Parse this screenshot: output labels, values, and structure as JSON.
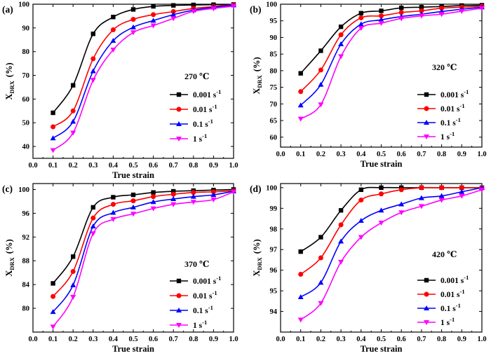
{
  "chart_data": [
    {
      "type": "line",
      "panel_label": "(a)",
      "temperature": "270 ℃",
      "xlabel": "True strain",
      "ylabel_main": "X",
      "ylabel_sub": "DRX",
      "ylabel_unit": "(%)",
      "xlim": [
        0.0,
        1.0
      ],
      "ylim": [
        35,
        100
      ],
      "xticks": [
        "0.0",
        "0.1",
        "0.2",
        "0.3",
        "0.4",
        "0.5",
        "0.6",
        "0.7",
        "0.8",
        "0.9",
        "1.0"
      ],
      "yticks": [
        "40",
        "50",
        "60",
        "70",
        "80",
        "90",
        "100"
      ],
      "x": [
        0.1,
        0.2,
        0.3,
        0.4,
        0.5,
        0.6,
        0.7,
        0.8,
        0.9,
        1.0
      ],
      "series": [
        {
          "name_base": "0.001 s",
          "name_sup": "-1",
          "color": "#000000",
          "marker": "square",
          "values": [
            54.2,
            65.8,
            87.5,
            94.6,
            97.8,
            99.1,
            99.5,
            99.7,
            99.8,
            99.9
          ]
        },
        {
          "name_base": "0.01 s",
          "name_sup": "-1",
          "color": "#ff0000",
          "marker": "circle",
          "values": [
            48.3,
            55.0,
            77.0,
            89.2,
            93.6,
            95.6,
            96.9,
            98.2,
            99.0,
            99.8
          ]
        },
        {
          "name_base": "0.1 s",
          "name_sup": "-1",
          "color": "#0000ff",
          "marker": "triangle-up",
          "values": [
            43.5,
            50.5,
            71.8,
            84.6,
            90.3,
            93.1,
            95.6,
            97.5,
            98.7,
            99.6
          ]
        },
        {
          "name_base": "1 s",
          "name_sup": "-1",
          "color": "#ff00ff",
          "marker": "triangle-down",
          "values": [
            38.4,
            45.8,
            68.0,
            80.8,
            88.1,
            91.0,
            94.0,
            97.0,
            98.2,
            99.2
          ]
        }
      ]
    },
    {
      "type": "line",
      "panel_label": "(b)",
      "temperature": "320 ℃",
      "xlabel": "True strain",
      "ylabel_main": "X",
      "ylabel_sub": "DRX",
      "ylabel_unit": "(%)",
      "xlim": [
        0.0,
        1.0
      ],
      "ylim": [
        57,
        100
      ],
      "xticks": [
        "0.0",
        "0.1",
        "0.2",
        "0.3",
        "0.4",
        "0.5",
        "0.6",
        "0.7",
        "0.8",
        "0.9",
        "1.0"
      ],
      "yticks": [
        "60",
        "65",
        "70",
        "75",
        "80",
        "85",
        "90",
        "95",
        "100"
      ],
      "x": [
        0.1,
        0.2,
        0.3,
        0.4,
        0.5,
        0.6,
        0.7,
        0.8,
        0.9,
        1.0
      ],
      "series": [
        {
          "name_base": "0.001 s",
          "name_sup": "-1",
          "color": "#000000",
          "marker": "square",
          "values": [
            79.2,
            86.0,
            93.2,
            97.3,
            98.0,
            98.9,
            99.1,
            99.3,
            99.6,
            99.7
          ]
        },
        {
          "name_base": "0.01 s",
          "name_sup": "-1",
          "color": "#ff0000",
          "marker": "circle",
          "values": [
            73.7,
            80.2,
            90.8,
            95.9,
            96.5,
            97.5,
            98.0,
            98.8,
            99.1,
            99.4
          ]
        },
        {
          "name_base": "0.1 s",
          "name_sup": "-1",
          "color": "#0000ff",
          "marker": "triangle-up",
          "values": [
            69.6,
            75.8,
            88.0,
            94.0,
            95.3,
            96.3,
            97.0,
            97.8,
            98.5,
            99.1
          ]
        },
        {
          "name_base": "1 s",
          "name_sup": "-1",
          "color": "#ff00ff",
          "marker": "triangle-down",
          "values": [
            65.5,
            69.8,
            84.3,
            92.8,
            94.3,
            95.7,
            96.5,
            97.0,
            97.9,
            98.8
          ]
        }
      ]
    },
    {
      "type": "line",
      "panel_label": "(c)",
      "temperature": "370 ℃",
      "xlabel": "True strain",
      "ylabel_main": "X",
      "ylabel_sub": "DRX",
      "ylabel_unit": "(%)",
      "xlim": [
        0.0,
        1.0
      ],
      "ylim": [
        76,
        101
      ],
      "xticks": [
        "0.0",
        "0.1",
        "0.2",
        "0.3",
        "0.4",
        "0.5",
        "0.6",
        "0.7",
        "0.8",
        "0.9",
        "1.0"
      ],
      "yticks": [
        "80",
        "84",
        "88",
        "92",
        "96",
        "100"
      ],
      "x": [
        0.1,
        0.2,
        0.3,
        0.4,
        0.5,
        0.6,
        0.7,
        0.8,
        0.9,
        1.0
      ],
      "series": [
        {
          "name_base": "0.001 s",
          "name_sup": "-1",
          "color": "#000000",
          "marker": "square",
          "values": [
            84.2,
            88.7,
            97.0,
            98.7,
            99.1,
            99.5,
            99.7,
            99.8,
            99.9,
            100.0
          ]
        },
        {
          "name_base": "0.01 s",
          "name_sup": "-1",
          "color": "#ff0000",
          "marker": "circle",
          "values": [
            82.0,
            86.2,
            95.2,
            97.5,
            98.1,
            98.8,
            99.2,
            99.5,
            99.6,
            99.8
          ]
        },
        {
          "name_base": "0.1 s",
          "name_sup": "-1",
          "color": "#0000ff",
          "marker": "triangle-up",
          "values": [
            79.4,
            83.9,
            93.8,
            96.1,
            97.0,
            97.9,
            98.4,
            98.8,
            99.1,
            99.7
          ]
        },
        {
          "name_base": "1 s",
          "name_sup": "-1",
          "color": "#ff00ff",
          "marker": "triangle-down",
          "values": [
            76.9,
            81.9,
            92.6,
            95.0,
            95.9,
            96.8,
            97.5,
            97.9,
            98.3,
            99.6
          ]
        }
      ]
    },
    {
      "type": "line",
      "panel_label": "(d)",
      "temperature": "420 ℃",
      "xlabel": "True strain",
      "ylabel_main": "X",
      "ylabel_sub": "DRX",
      "ylabel_unit": "(%)",
      "xlim": [
        0.0,
        1.0
      ],
      "ylim": [
        93,
        100.2
      ],
      "xticks": [
        "0.0",
        "0.1",
        "0.2",
        "0.3",
        "0.4",
        "0.5",
        "0.6",
        "0.7",
        "0.8",
        "0.9",
        "1.0"
      ],
      "yticks": [
        "94",
        "95",
        "96",
        "97",
        "98",
        "99",
        "100"
      ],
      "x": [
        0.1,
        0.2,
        0.3,
        0.4,
        0.5,
        0.6,
        0.7,
        0.8,
        0.9,
        1.0
      ],
      "series": [
        {
          "name_base": "0.001 s",
          "name_sup": "-1",
          "color": "#000000",
          "marker": "square",
          "values": [
            96.9,
            97.6,
            98.9,
            99.9,
            100.0,
            100.0,
            100.0,
            100.0,
            100.0,
            100.0
          ]
        },
        {
          "name_base": "0.01 s",
          "name_sup": "-1",
          "color": "#ff0000",
          "marker": "circle",
          "values": [
            95.8,
            96.6,
            98.2,
            99.4,
            99.7,
            99.9,
            100.0,
            100.0,
            100.0,
            100.0
          ]
        },
        {
          "name_base": "0.1 s",
          "name_sup": "-1",
          "color": "#0000ff",
          "marker": "triangle-up",
          "values": [
            94.7,
            95.4,
            97.4,
            98.4,
            98.9,
            99.2,
            99.5,
            99.6,
            99.8,
            100.0
          ]
        },
        {
          "name_base": "1 s",
          "name_sup": "-1",
          "color": "#ff00ff",
          "marker": "triangle-down",
          "values": [
            93.6,
            94.4,
            96.4,
            97.6,
            98.3,
            98.8,
            99.1,
            99.4,
            99.6,
            99.9
          ]
        }
      ]
    }
  ]
}
